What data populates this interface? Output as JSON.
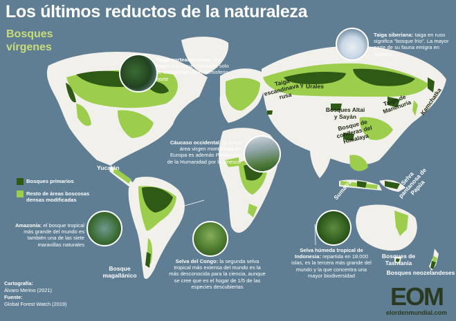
{
  "title": "Los últimos reductos de la naturaleza",
  "subtitle": "Bosques vírgenes",
  "colors": {
    "ocean": "#5f7e93",
    "land": "#f2f0ea",
    "primary_forest": "#2f5a16",
    "modified_forest": "#9ccd4c"
  },
  "legend": [
    {
      "label": "Bosques primarios",
      "color": "#2f5a16"
    },
    {
      "label": "Resto de áreas boscosas densas modificadas",
      "color": "#9ccd4c"
    }
  ],
  "map_labels": {
    "yucatan": "Yucatán",
    "bosque_magallanico": "Bosque magallánico",
    "urales": "Urales",
    "taiga_escandinava": "Taiga escandinava y rusa",
    "bosques_altai": "Bosques Altai y Sayán",
    "taiga_manchuria": "Taiga de Manchuria",
    "kamchatka": "Kamchatka",
    "bosque_himalaya": "Bosque de coníferas del Himalaya",
    "sumatra": "Sumatra",
    "selva_papua": "Selva pantanosa de Papúa",
    "bosques_tasmania": "Bosques de Tasmania",
    "bosques_neozelandeses": "Bosques neozelandeses"
  },
  "notes": {
    "taiga_norteamericana": {
      "title": "Taiga norteamericana:",
      "text": "las taigas o bosques boreales solo se encuentran en el hemisferio norte"
    },
    "taiga_siberiana": {
      "title": "Taiga siberiana:",
      "text": "taiga en ruso significa “bosque frío”. La mayor parte de su fauna emigra en invierno"
    },
    "caucaso": {
      "title": "Cáucaso occidental:",
      "text": "la única área virgen montañosa de Europa es además Patrimonio de la Humanidad por la Unesco"
    },
    "amazonia": {
      "title": "Amazonía:",
      "text": "el bosque tropical más grande del mundo es también una de las siete maravillas naturales"
    },
    "congo": {
      "title": "Selva del Congo:",
      "text": "la segunda selva tropical más extensa del mundo es la más desconocida para la ciencia, aunque se cree que es el hogar de 1/5 de las especies descubiertas"
    },
    "indonesia": {
      "title": "Selva húmeda tropical de Indonesia:",
      "text": "repartida en 18.000 islas, es la tercera más grande del mundo y la que concentra una mayor biodiversidad"
    }
  },
  "credits": {
    "cartografia_label": "Cartografía:",
    "cartografia": "Álvaro Merino (2021)",
    "fuente_label": "Fuente:",
    "fuente": "Global Forest Watch (2019)"
  },
  "logo": {
    "mark": "EOM",
    "site": "elordenmundial.com"
  }
}
